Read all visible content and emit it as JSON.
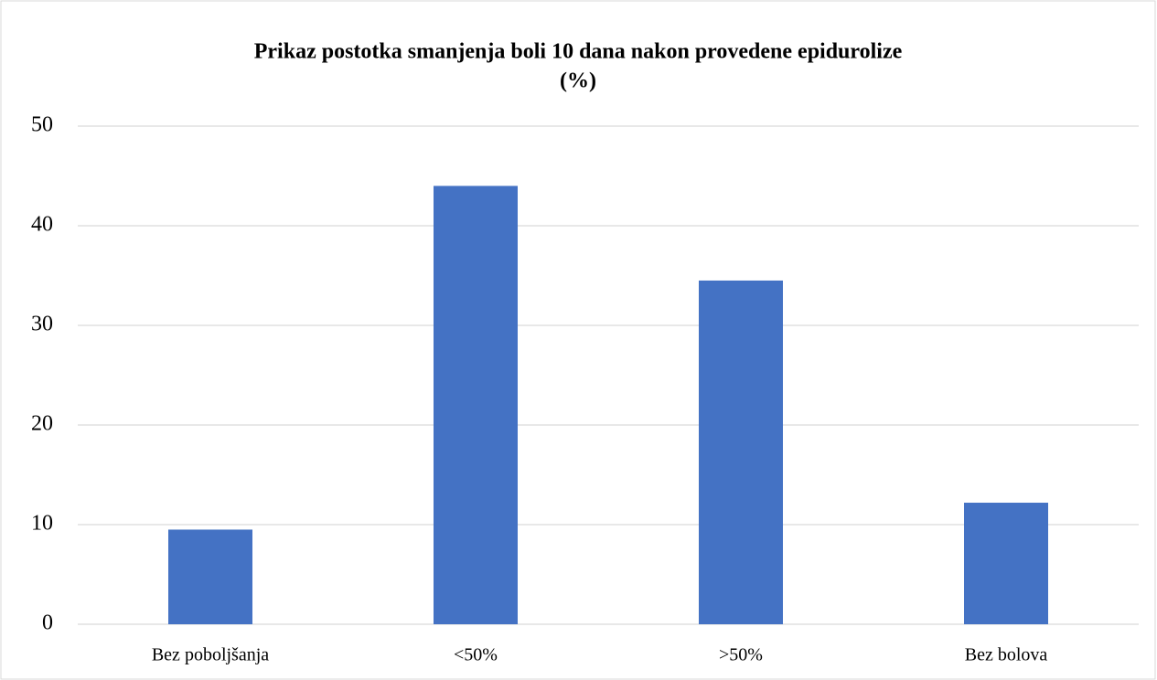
{
  "chart_data": {
    "type": "bar",
    "title": [
      "Prikaz postotka smanjenja boli 10 dana nakon provedene epidurolize",
      "(%)"
    ],
    "categories": [
      "Bez poboljšanja",
      "<50%",
      ">50%",
      "Bez bolova"
    ],
    "values": [
      9.5,
      44,
      34.5,
      12.2
    ],
    "color": "#4472c4",
    "ylim": [
      0,
      50
    ],
    "yticks": [
      0,
      10,
      20,
      30,
      40,
      50
    ],
    "grid": true
  }
}
